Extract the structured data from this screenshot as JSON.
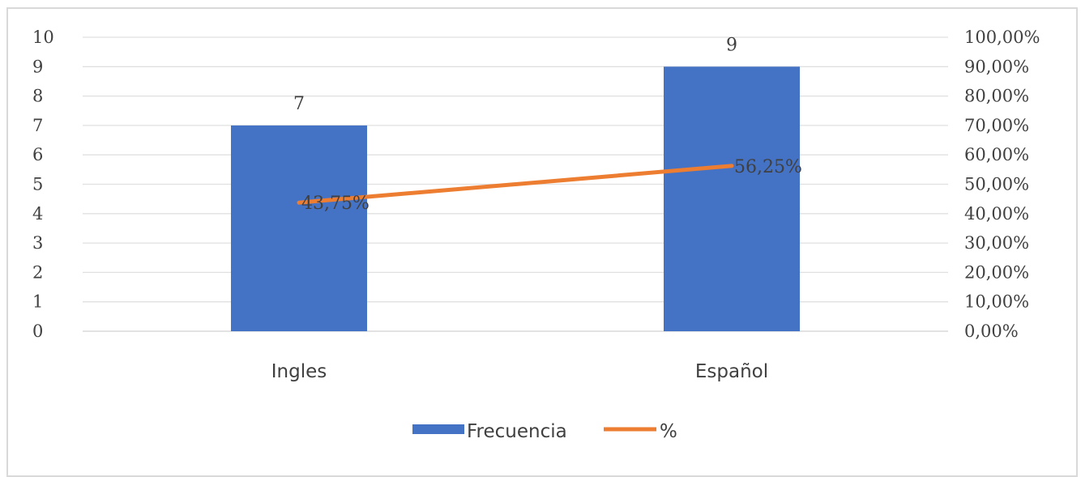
{
  "chart_data": {
    "type": "bar",
    "categories": [
      "Ingles",
      "Español"
    ],
    "series": [
      {
        "name": "Frecuencia",
        "type": "bar",
        "axis": "left",
        "color": "#4472C4",
        "values": [
          7,
          9
        ],
        "labels": [
          "7",
          "9"
        ]
      },
      {
        "name": "%",
        "type": "line",
        "axis": "right",
        "color": "#ED7D31",
        "values": [
          43.75,
          56.25
        ],
        "labels": [
          "43,75%",
          "56,25%"
        ]
      }
    ],
    "y_left": {
      "range": [
        0,
        10
      ],
      "ticks": [
        "0",
        "1",
        "2",
        "3",
        "4",
        "5",
        "6",
        "7",
        "8",
        "9",
        "10"
      ]
    },
    "y_right": {
      "range": [
        0,
        100
      ],
      "ticks": [
        "0,00%",
        "10,00%",
        "20,00%",
        "30,00%",
        "40,00%",
        "50,00%",
        "60,00%",
        "70,00%",
        "80,00%",
        "90,00%",
        "100,00%"
      ]
    },
    "grid": true,
    "legend": {
      "position": "bottom",
      "items": [
        "Frecuencia",
        "%"
      ]
    }
  }
}
